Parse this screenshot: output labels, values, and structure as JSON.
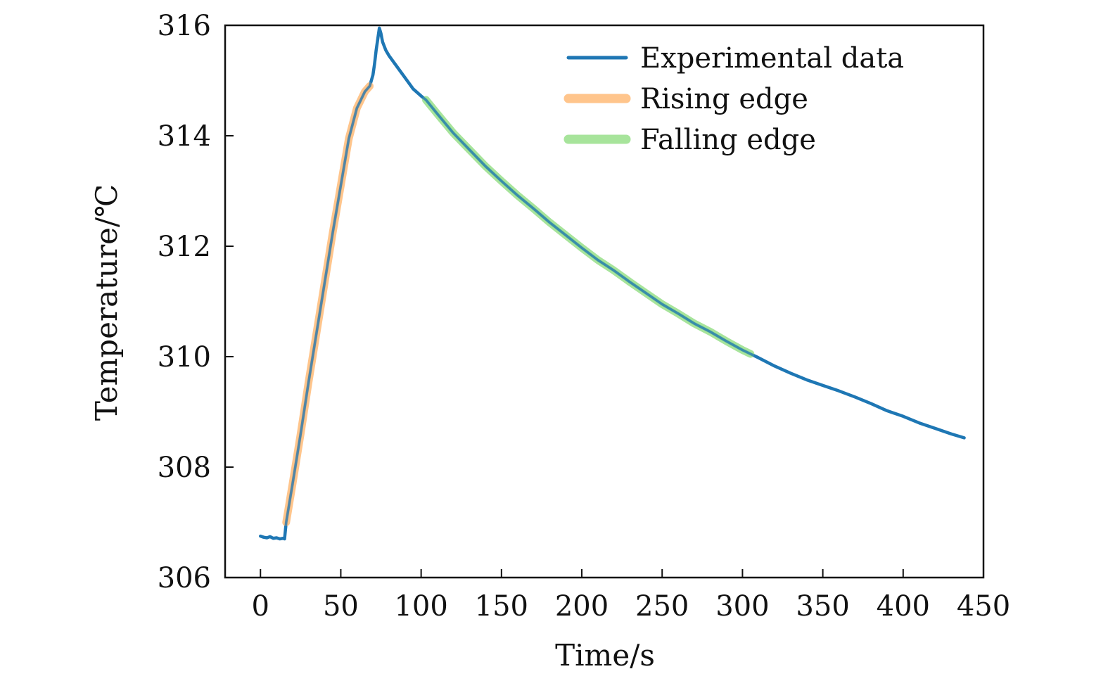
{
  "chart_data": {
    "type": "line",
    "title": "",
    "xlabel": "Time/s",
    "ylabel": "Temperature/℃",
    "xlim": [
      -22,
      450
    ],
    "ylim": [
      306,
      316
    ],
    "xticks": [
      0,
      50,
      100,
      150,
      200,
      250,
      300,
      350,
      400,
      450
    ],
    "yticks": [
      306,
      308,
      310,
      312,
      314,
      316
    ],
    "xtick_labels": [
      "0",
      "50",
      "100",
      "150",
      "200",
      "250",
      "300",
      "350",
      "400",
      "450"
    ],
    "ytick_labels": [
      "306",
      "308",
      "310",
      "312",
      "314",
      "316"
    ],
    "grid": false,
    "legend_position": "top-right",
    "series": [
      {
        "name": "Experimental data",
        "color": "#1f77b4",
        "x": [
          0,
          2,
          4,
          6,
          8,
          10,
          12,
          14,
          15,
          16,
          18,
          20,
          25,
          30,
          35,
          40,
          45,
          50,
          55,
          60,
          65,
          68,
          70,
          71,
          72,
          73,
          74,
          75,
          76,
          78,
          80,
          85,
          90,
          95,
          100,
          103,
          110,
          120,
          130,
          140,
          150,
          160,
          170,
          180,
          190,
          200,
          210,
          220,
          230,
          240,
          250,
          260,
          270,
          280,
          290,
          300,
          305,
          310,
          320,
          330,
          340,
          350,
          360,
          370,
          380,
          390,
          400,
          410,
          420,
          430,
          438
        ],
        "y": [
          306.75,
          306.73,
          306.72,
          306.74,
          306.71,
          306.72,
          306.7,
          306.71,
          306.7,
          307.0,
          307.35,
          307.7,
          308.6,
          309.55,
          310.45,
          311.35,
          312.25,
          313.1,
          313.95,
          314.5,
          314.8,
          314.9,
          315.1,
          315.3,
          315.55,
          315.75,
          315.95,
          315.85,
          315.7,
          315.55,
          315.45,
          315.25,
          315.05,
          314.85,
          314.72,
          314.65,
          314.4,
          314.05,
          313.75,
          313.45,
          313.18,
          312.92,
          312.68,
          312.43,
          312.2,
          311.97,
          311.75,
          311.56,
          311.35,
          311.15,
          310.95,
          310.78,
          310.6,
          310.45,
          310.28,
          310.12,
          310.05,
          309.98,
          309.83,
          309.7,
          309.58,
          309.48,
          309.38,
          309.27,
          309.15,
          309.02,
          308.92,
          308.8,
          308.7,
          308.6,
          308.53
        ]
      },
      {
        "name": "Rising edge",
        "color": "#ffbb78",
        "x": [
          16,
          20,
          25,
          30,
          35,
          40,
          45,
          50,
          55,
          60,
          65,
          68
        ],
        "y": [
          307.0,
          307.7,
          308.6,
          309.55,
          310.45,
          311.35,
          312.25,
          313.1,
          313.95,
          314.5,
          314.8,
          314.9
        ]
      },
      {
        "name": "Falling edge",
        "color": "#98df8a",
        "x": [
          103,
          110,
          120,
          130,
          140,
          150,
          160,
          170,
          180,
          190,
          200,
          210,
          220,
          230,
          240,
          250,
          260,
          270,
          280,
          290,
          300,
          305
        ],
        "y": [
          314.65,
          314.4,
          314.05,
          313.75,
          313.45,
          313.18,
          312.92,
          312.68,
          312.43,
          312.2,
          311.97,
          311.75,
          311.56,
          311.35,
          311.15,
          310.95,
          310.78,
          310.6,
          310.45,
          310.28,
          310.12,
          310.05
        ]
      }
    ]
  }
}
